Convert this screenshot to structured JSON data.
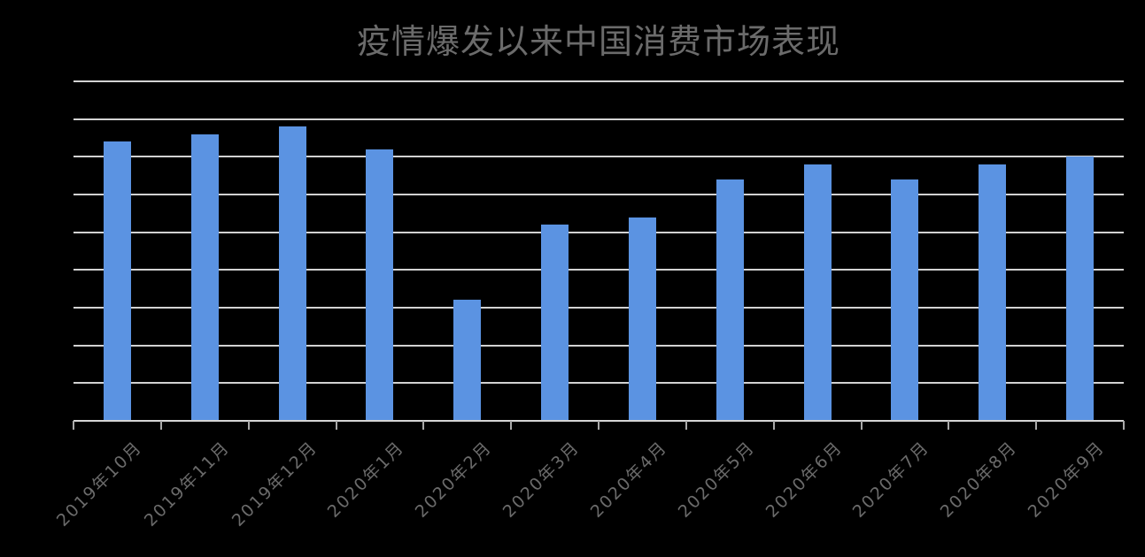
{
  "title": "疫情爆发以来中国消费市场表现",
  "colors": {
    "background": "#000000",
    "bar": "#5b93e2",
    "gridline": "#d2d2d2",
    "axis_line": "#d6d6d6",
    "tick": "#a9a9a9",
    "text": "#6b6b6b"
  },
  "chart_data": {
    "type": "bar",
    "title": "疫情爆发以来中国消费市场表现",
    "categories": [
      "2019年10月",
      "2019年11月",
      "2019年12月",
      "2020年1月",
      "2020年2月",
      "2020年3月",
      "2020年4月",
      "2020年5月",
      "2020年6月",
      "2020年7月",
      "2020年8月",
      "2020年9月"
    ],
    "values": [
      37000,
      38000,
      39000,
      36000,
      16000,
      26000,
      27000,
      32000,
      34000,
      32000,
      34000,
      35000
    ],
    "xlabel": "",
    "ylabel": "",
    "ylim": [
      0,
      45000
    ],
    "gridline_step": 5000,
    "grid": true,
    "legend_position": "none",
    "y_axis_labels_visible": false,
    "x_label_rotation_deg": -45
  }
}
